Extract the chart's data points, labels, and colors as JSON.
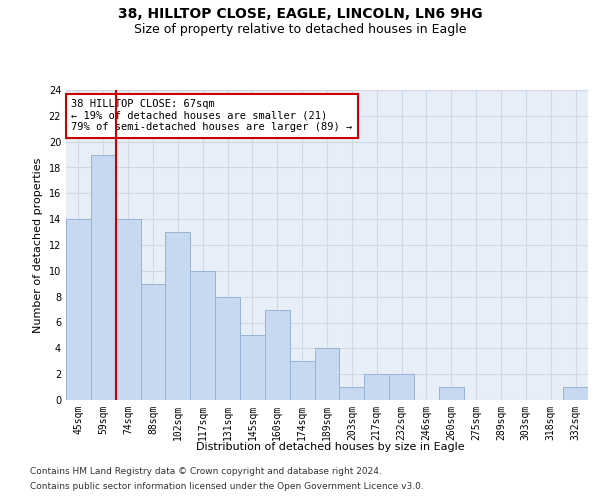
{
  "title1": "38, HILLTOP CLOSE, EAGLE, LINCOLN, LN6 9HG",
  "title2": "Size of property relative to detached houses in Eagle",
  "xlabel": "Distribution of detached houses by size in Eagle",
  "ylabel": "Number of detached properties",
  "categories": [
    "45sqm",
    "59sqm",
    "74sqm",
    "88sqm",
    "102sqm",
    "117sqm",
    "131sqm",
    "145sqm",
    "160sqm",
    "174sqm",
    "189sqm",
    "203sqm",
    "217sqm",
    "232sqm",
    "246sqm",
    "260sqm",
    "275sqm",
    "289sqm",
    "303sqm",
    "318sqm",
    "332sqm"
  ],
  "values": [
    14,
    19,
    14,
    9,
    13,
    10,
    8,
    5,
    7,
    3,
    4,
    1,
    2,
    2,
    0,
    1,
    0,
    0,
    0,
    0,
    1
  ],
  "bar_color": "#c6d9f1",
  "bar_edge_color": "#9ab3d5",
  "vline_x": 1.5,
  "vline_color": "#cc0000",
  "annotation_text": "38 HILLTOP CLOSE: 67sqm\n← 19% of detached houses are smaller (21)\n79% of semi-detached houses are larger (89) →",
  "annotation_box_color": "#ffffff",
  "annotation_box_edge": "#cc0000",
  "ylim": [
    0,
    24
  ],
  "yticks": [
    0,
    2,
    4,
    6,
    8,
    10,
    12,
    14,
    16,
    18,
    20,
    22,
    24
  ],
  "grid_color": "#d0d8e8",
  "bg_color": "#e8eef8",
  "footnote1": "Contains HM Land Registry data © Crown copyright and database right 2024.",
  "footnote2": "Contains public sector information licensed under the Open Government Licence v3.0.",
  "title1_fontsize": 10,
  "title2_fontsize": 9,
  "axis_label_fontsize": 8,
  "tick_fontsize": 7,
  "annotation_fontsize": 7.5,
  "footnote_fontsize": 6.5
}
